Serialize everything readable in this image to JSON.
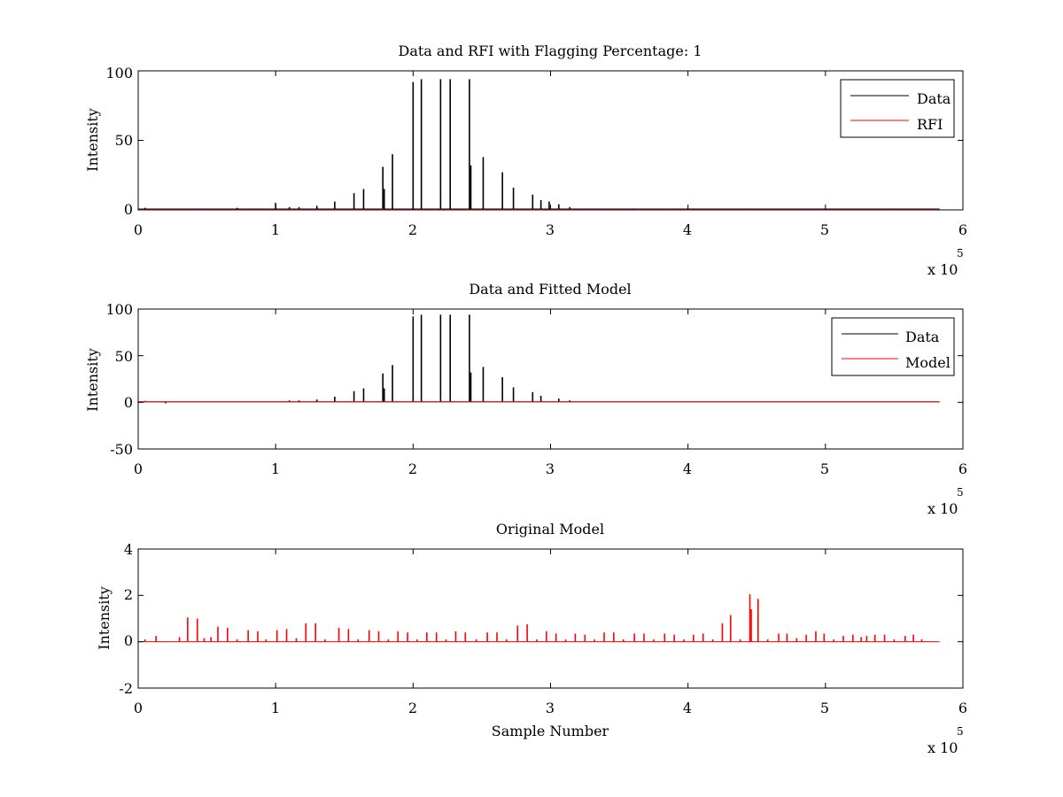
{
  "colors": {
    "data": "#000000",
    "rfi": "#ff0000",
    "model": "#ff0000",
    "axes": "#000000",
    "background": "#ffffff"
  },
  "chart_data": [
    {
      "id": "top",
      "type": "line",
      "title": "Data and RFI with Flagging Percentage: 1",
      "xlabel": "",
      "ylabel": "Intensity",
      "xlim": [
        0,
        6
      ],
      "ylim": [
        0,
        100
      ],
      "xticks": [
        "0",
        "1",
        "2",
        "3",
        "4",
        "5",
        "6"
      ],
      "yticks": [
        "0",
        "50",
        "100"
      ],
      "x_multiplier": {
        "base": "x 10",
        "exponent": "5"
      },
      "legend": {
        "position": "top-right",
        "entries": [
          "Data",
          "RFI"
        ]
      },
      "grid": false,
      "series": [
        {
          "name": "Data",
          "color": "#000000",
          "baseline": 0.6,
          "x_end": 5.83,
          "peaks": [
            [
              0.05,
              1.5
            ],
            [
              0.35,
              1.0
            ],
            [
              0.45,
              1.0
            ],
            [
              0.72,
              1.5
            ],
            [
              0.85,
              1.0
            ],
            [
              1.0,
              5.0
            ],
            [
              1.1,
              2.0
            ],
            [
              1.17,
              2.0
            ],
            [
              1.3,
              3.0
            ],
            [
              1.43,
              6.0
            ],
            [
              1.57,
              12.0
            ],
            [
              1.64,
              15.0
            ],
            [
              1.78,
              31.0
            ],
            [
              1.79,
              15.0
            ],
            [
              1.85,
              40.0
            ],
            [
              2.0,
              92.0
            ],
            [
              2.06,
              94.0
            ],
            [
              2.2,
              94.0
            ],
            [
              2.27,
              94.0
            ],
            [
              2.41,
              94.0
            ],
            [
              2.42,
              32.0
            ],
            [
              2.51,
              38.0
            ],
            [
              2.65,
              27.0
            ],
            [
              2.73,
              16.0
            ],
            [
              2.87,
              11.0
            ],
            [
              2.93,
              7.0
            ],
            [
              2.99,
              6.0
            ],
            [
              3.06,
              4.0
            ],
            [
              3.14,
              2.0
            ],
            [
              3.3,
              1.0
            ],
            [
              3.6,
              1.0
            ],
            [
              3.9,
              1.0
            ],
            [
              4.45,
              1.0
            ],
            [
              4.95,
              1.0
            ],
            [
              5.5,
              1.0
            ]
          ]
        },
        {
          "name": "RFI",
          "color": "#ff0000",
          "baseline": 0.3,
          "x_end": 5.83,
          "peaks": [
            [
              1.78,
              1.0
            ],
            [
              2.46,
              0.8
            ],
            [
              3.87,
              0.8
            ]
          ]
        }
      ]
    },
    {
      "id": "middle",
      "type": "line",
      "title": "Data and Fitted Model",
      "xlabel": "",
      "ylabel": "Intensity",
      "xlim": [
        0,
        6
      ],
      "ylim": [
        -50,
        100
      ],
      "xticks": [
        "0",
        "1",
        "2",
        "3",
        "4",
        "5",
        "6"
      ],
      "yticks": [
        "-50",
        "0",
        "50",
        "100"
      ],
      "x_multiplier": {
        "base": "x 10",
        "exponent": "5"
      },
      "legend": {
        "position": "top-right",
        "entries": [
          "Data",
          "Model"
        ]
      },
      "grid": false,
      "series": [
        {
          "name": "Data",
          "color": "#000000",
          "baseline": 0.5,
          "x_end": 5.83,
          "peaks": [
            [
              0.05,
              1.5
            ],
            [
              0.2,
              -1.0
            ],
            [
              1.1,
              2.0
            ],
            [
              1.17,
              2.0
            ],
            [
              1.3,
              3.0
            ],
            [
              1.43,
              6.0
            ],
            [
              1.57,
              12.0
            ],
            [
              1.64,
              15.0
            ],
            [
              1.78,
              31.0
            ],
            [
              1.79,
              15.0
            ],
            [
              1.85,
              40.0
            ],
            [
              2.0,
              92.0
            ],
            [
              2.06,
              94.0
            ],
            [
              2.2,
              94.0
            ],
            [
              2.27,
              94.0
            ],
            [
              2.41,
              94.0
            ],
            [
              2.42,
              32.0
            ],
            [
              2.51,
              38.0
            ],
            [
              2.65,
              27.0
            ],
            [
              2.73,
              16.0
            ],
            [
              2.87,
              11.0
            ],
            [
              2.93,
              7.0
            ],
            [
              3.06,
              4.0
            ],
            [
              3.14,
              2.0
            ]
          ]
        },
        {
          "name": "Model",
          "color": "#ff0000",
          "baseline": 0.5,
          "x_end": 5.83,
          "peaks": []
        }
      ]
    },
    {
      "id": "bottom",
      "type": "line",
      "title": "Original Model",
      "xlabel": "Sample Number",
      "ylabel": "Intensity",
      "xlim": [
        0,
        6
      ],
      "ylim": [
        -2,
        4
      ],
      "xticks": [
        "0",
        "1",
        "2",
        "3",
        "4",
        "5",
        "6"
      ],
      "yticks": [
        "-2",
        "0",
        "2",
        "4"
      ],
      "x_multiplier": {
        "base": "x 10",
        "exponent": "5"
      },
      "legend": null,
      "grid": false,
      "series": [
        {
          "name": "",
          "color": "#ff0000",
          "baseline": 0.0,
          "x_end": 5.83,
          "peaks": [
            [
              0.05,
              0.1
            ],
            [
              0.13,
              0.25
            ],
            [
              0.3,
              0.2
            ],
            [
              0.36,
              1.05
            ],
            [
              0.43,
              1.0
            ],
            [
              0.48,
              0.15
            ],
            [
              0.53,
              0.2
            ],
            [
              0.58,
              0.65
            ],
            [
              0.65,
              0.6
            ],
            [
              0.72,
              0.1
            ],
            [
              0.8,
              0.5
            ],
            [
              0.87,
              0.45
            ],
            [
              0.93,
              0.1
            ],
            [
              1.01,
              0.5
            ],
            [
              1.08,
              0.55
            ],
            [
              1.15,
              0.15
            ],
            [
              1.22,
              0.8
            ],
            [
              1.29,
              0.8
            ],
            [
              1.36,
              0.1
            ],
            [
              1.46,
              0.6
            ],
            [
              1.53,
              0.55
            ],
            [
              1.6,
              0.1
            ],
            [
              1.68,
              0.5
            ],
            [
              1.75,
              0.45
            ],
            [
              1.82,
              0.1
            ],
            [
              1.89,
              0.45
            ],
            [
              1.96,
              0.4
            ],
            [
              2.03,
              0.1
            ],
            [
              2.1,
              0.4
            ],
            [
              2.17,
              0.4
            ],
            [
              2.24,
              0.1
            ],
            [
              2.31,
              0.45
            ],
            [
              2.38,
              0.4
            ],
            [
              2.46,
              0.1
            ],
            [
              2.54,
              0.4
            ],
            [
              2.61,
              0.4
            ],
            [
              2.68,
              0.1
            ],
            [
              2.76,
              0.7
            ],
            [
              2.83,
              0.75
            ],
            [
              2.9,
              0.1
            ],
            [
              2.97,
              0.45
            ],
            [
              3.04,
              0.35
            ],
            [
              3.11,
              0.1
            ],
            [
              3.18,
              0.35
            ],
            [
              3.25,
              0.3
            ],
            [
              3.32,
              0.1
            ],
            [
              3.39,
              0.4
            ],
            [
              3.46,
              0.4
            ],
            [
              3.53,
              0.1
            ],
            [
              3.61,
              0.35
            ],
            [
              3.68,
              0.35
            ],
            [
              3.75,
              0.1
            ],
            [
              3.83,
              0.35
            ],
            [
              3.9,
              0.3
            ],
            [
              3.97,
              0.1
            ],
            [
              4.04,
              0.3
            ],
            [
              4.11,
              0.35
            ],
            [
              4.18,
              0.1
            ],
            [
              4.25,
              0.8
            ],
            [
              4.31,
              1.15
            ],
            [
              4.38,
              0.1
            ],
            [
              4.45,
              2.05
            ],
            [
              4.46,
              1.4
            ],
            [
              4.51,
              1.85
            ],
            [
              4.58,
              0.1
            ],
            [
              4.66,
              0.35
            ],
            [
              4.72,
              0.35
            ],
            [
              4.79,
              0.15
            ],
            [
              4.86,
              0.3
            ],
            [
              4.93,
              0.45
            ],
            [
              4.99,
              0.35
            ],
            [
              5.06,
              0.1
            ],
            [
              5.13,
              0.25
            ],
            [
              5.2,
              0.3
            ],
            [
              5.26,
              0.2
            ],
            [
              5.3,
              0.25
            ],
            [
              5.36,
              0.3
            ],
            [
              5.43,
              0.3
            ],
            [
              5.5,
              0.1
            ],
            [
              5.58,
              0.25
            ],
            [
              5.64,
              0.3
            ],
            [
              5.7,
              0.1
            ]
          ]
        }
      ]
    }
  ]
}
